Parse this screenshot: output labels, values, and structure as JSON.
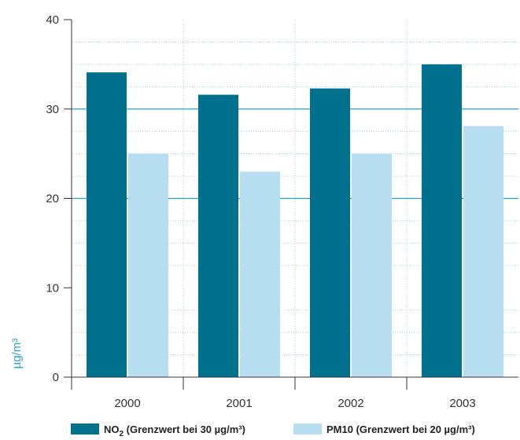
{
  "chart_data": {
    "type": "bar",
    "title": "",
    "xlabel": "",
    "ylabel": "µg/m³",
    "categories": [
      "2000",
      "2001",
      "2002",
      "2003"
    ],
    "series": [
      {
        "name": "NO2 (Grenzwert bei 30 µg/m³)",
        "values": [
          34.1,
          31.6,
          32.3,
          35.0
        ]
      },
      {
        "name": "PM10 (Grenzwert bei 20 µg/m³)",
        "values": [
          25.0,
          23.0,
          25.0,
          28.1
        ]
      }
    ],
    "ylim": [
      0,
      40
    ],
    "yticks": [
      0,
      10,
      20,
      30,
      40
    ],
    "limit_lines": [
      30,
      20
    ],
    "legend_position": "bottom",
    "grid": true
  },
  "legend": {
    "no2_main": "NO",
    "no2_sub": "2",
    "no2_rest": " (Grenzwert bei 30 µg/m³)",
    "pm10": "PM10 (Grenzwert bei 20 µg/m³)"
  },
  "colors": {
    "no2": "#00708f",
    "pm10": "#b7ddf0",
    "limit_line": "#2aa1cc",
    "grid": "#9fcfe3",
    "axis": "#333333",
    "ylabel": "#2aa1cc",
    "tick_highlight": "#2aa1cc",
    "tick_highlight_light": "#9fd3ea",
    "tick_default": "#333333"
  }
}
